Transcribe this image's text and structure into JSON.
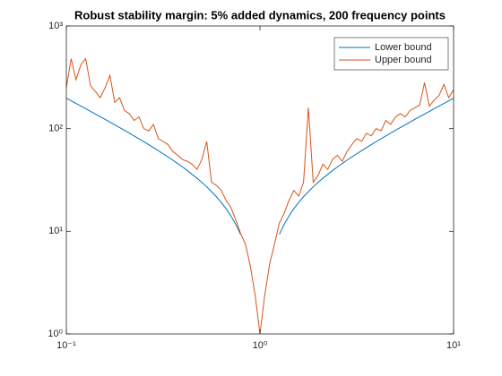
{
  "chart_data": {
    "type": "line",
    "title": "Robust stability margin: 5% added dynamics, 200 frequency points",
    "x": [
      0.1,
      0.1059,
      0.1122,
      0.1189,
      0.1259,
      0.1334,
      0.1413,
      0.1496,
      0.1585,
      0.1679,
      0.1778,
      0.1884,
      0.1995,
      0.2113,
      0.2239,
      0.2371,
      0.2512,
      0.2661,
      0.2818,
      0.2985,
      0.3162,
      0.335,
      0.3548,
      0.3758,
      0.3981,
      0.4217,
      0.4467,
      0.4732,
      0.5012,
      0.5309,
      0.5623,
      0.5957,
      0.631,
      0.6683,
      0.7079,
      0.7499,
      0.7943,
      0.8414,
      0.8913,
      0.9441,
      1,
      1.059,
      1.122,
      1.189,
      1.259,
      1.334,
      1.413,
      1.496,
      1.585,
      1.679,
      1.778,
      1.884,
      1.995,
      2.113,
      2.239,
      2.371,
      2.512,
      2.661,
      2.818,
      2.985,
      3.162,
      3.35,
      3.548,
      3.758,
      3.981,
      4.217,
      4.467,
      4.732,
      5.012,
      5.309,
      5.623,
      5.957,
      6.31,
      6.683,
      7.079,
      7.499,
      7.943,
      8.414,
      8.913,
      9.441,
      10
    ],
    "series": [
      {
        "name": "Lower bound",
        "color": "#0072BD",
        "values": [
          198,
          186.7,
          176,
          165.9,
          156.3,
          147.3,
          138.7,
          130.7,
          123,
          115.8,
          108.9,
          102.4,
          96.2,
          90.4,
          84.9,
          79.6,
          74.6,
          69.8,
          65.3,
          61,
          56.9,
          53,
          49.3,
          45.7,
          42.3,
          39,
          35.8,
          32.8,
          29.9,
          27.1,
          24.3,
          21.7,
          19.1,
          16.6,
          14.1,
          11.7,
          9.3,
          null,
          null,
          null,
          null,
          null,
          null,
          null,
          9.3,
          11.7,
          14.1,
          16.6,
          19.1,
          21.7,
          24.3,
          27.1,
          29.9,
          32.8,
          35.8,
          39,
          42.3,
          45.7,
          49.3,
          53,
          56.9,
          61,
          65.3,
          69.8,
          74.6,
          79.6,
          84.9,
          90.4,
          96.2,
          102.4,
          108.9,
          115.8,
          123,
          130.7,
          138.7,
          147.3,
          156.3,
          165.9,
          176,
          186.7,
          198
        ]
      },
      {
        "name": "Upper bound",
        "color": "#D95319",
        "values": [
          250,
          480,
          300,
          420,
          480,
          260,
          230,
          200,
          250,
          330,
          180,
          200,
          150,
          140,
          120,
          130,
          100,
          95,
          110,
          80,
          75,
          70,
          60,
          55,
          50,
          48,
          45,
          40,
          50,
          75,
          30,
          28,
          25,
          20,
          17,
          13,
          9.5,
          7.5,
          4.6,
          2.4,
          1,
          2.4,
          4.8,
          7.5,
          12,
          15,
          20,
          25,
          22,
          30,
          160,
          30,
          35,
          45,
          40,
          50,
          55,
          48,
          60,
          70,
          80,
          75,
          90,
          85,
          100,
          95,
          120,
          110,
          130,
          140,
          130,
          150,
          160,
          170,
          280,
          165,
          190,
          210,
          270,
          200,
          240
        ]
      }
    ],
    "xscale": "log",
    "yscale": "log",
    "xlim": [
      0.1,
      10
    ],
    "ylim": [
      1,
      1000
    ],
    "xticks": [
      {
        "value": 0.1,
        "label": "10⁻¹"
      },
      {
        "value": 1,
        "label": "10⁰"
      },
      {
        "value": 10,
        "label": "10¹"
      }
    ],
    "yticks": [
      {
        "value": 1,
        "label": "10⁰"
      },
      {
        "value": 10,
        "label": "10¹"
      },
      {
        "value": 100,
        "label": "10²"
      },
      {
        "value": 1000,
        "label": "10³"
      }
    ],
    "grid": false,
    "legend": "northeast"
  }
}
